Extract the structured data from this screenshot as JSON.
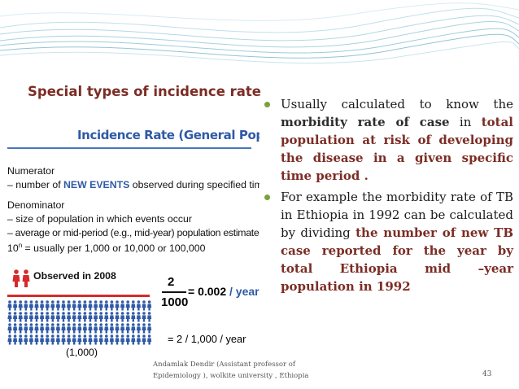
{
  "slide": {
    "title": "Special types of incidence rate",
    "page_number": "43",
    "footer": {
      "line1": "Andamlak Dendir (Assistant professor of",
      "line2": "Epidemiology ), wolkite university , Ethiopia"
    }
  },
  "figure": {
    "title": "Incidence Rate (General Population)",
    "numerator_heading": "Numerator",
    "numerator_pre": "– number of ",
    "numerator_emph": "NEW EVENTS",
    "numerator_post": " observed during specified time",
    "denominator_heading": "Denominator",
    "denominator_item1": "– size of population in which events occur",
    "denominator_item2": "– average or mid-period (e.g., mid-year) population estimate",
    "power_base": "10",
    "power_exp": "n",
    "power_text": " = usually per 1,000 or 10,000 or 100,000",
    "observed": "Observed in 2008",
    "fraction_numerator": "2",
    "fraction_denominator": "1000",
    "result_value": "= 0.002",
    "result_unit": "/ year",
    "rate_line": "= 2 / 1,000 / year",
    "population_label": "(1,000)",
    "colors": {
      "red_figures": "#d62b2b",
      "blue_figures": "#2f5aa6"
    }
  },
  "bullets": [
    {
      "p1": "Usually calculated to know the ",
      "h1": "morbidity  rate of  case",
      "p2": " in ",
      "h2": "total population  at risk of developing the disease in a given specific time period ."
    },
    {
      "p1": "For example the morbidity rate of TB in Ethiopia in 1992 can be calculated by dividing ",
      "h2": "the number of new TB case reported for the year by total  Ethiopia mid –year population in 1992"
    }
  ],
  "theme": {
    "title_color": "#7b2d25",
    "bullet_color": "#7aa23a",
    "figure_blue": "#2f5aa6"
  }
}
